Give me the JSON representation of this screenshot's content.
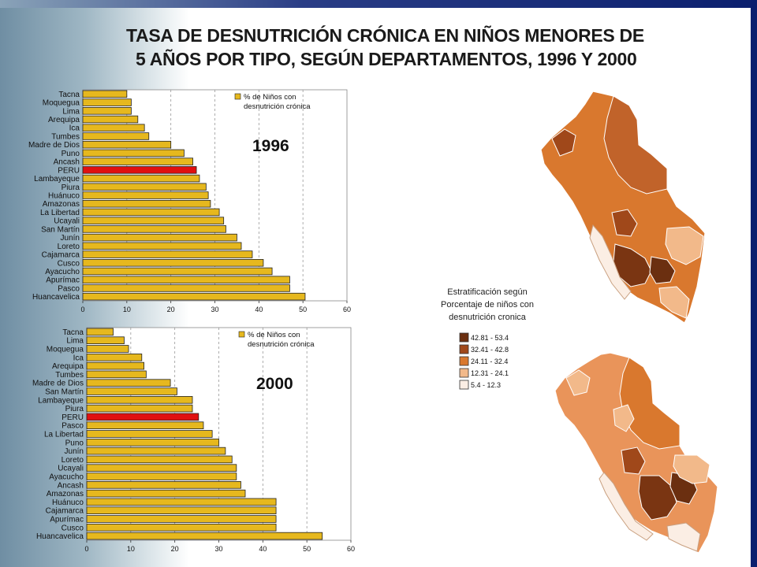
{
  "title": {
    "line1": "TASA DE  DESNUTRICIÓN CRÓNICA EN NIÑOS MENORES DE",
    "line2": "5 AÑOS  POR TIPO, SEGÚN DEPARTAMENTOS, 1996 Y  2000"
  },
  "colors": {
    "bar": "#e6b81e",
    "bar_highlight": "#e01010",
    "bar_stroke": "#222222",
    "map_classes": [
      "#6b2f10",
      "#a0481a",
      "#d9782e",
      "#f2b98a",
      "#fbeee4"
    ]
  },
  "chart_data": [
    {
      "type": "bar",
      "orientation": "horizontal",
      "year_label": "1996",
      "legend": [
        "% de Niños con",
        "desnutrición crónica"
      ],
      "legend_placement": "top-right",
      "xlim": [
        0,
        60
      ],
      "xticks": [
        "0",
        "10",
        "20",
        "30",
        "40",
        "50",
        "60"
      ],
      "grid": true,
      "highlight": "PERU",
      "categories": [
        "Tacna",
        "Moquegua",
        "Lima",
        "Arequipa",
        "Ica",
        "Tumbes",
        "Madre de Dios",
        "Puno",
        "Ancash",
        "PERU",
        "Lambayeque",
        "Piura",
        "Huánuco",
        "Amazonas",
        "La Libertad",
        "Ucayali",
        "San Martín",
        "Junín",
        "Loreto",
        "Cajamarca",
        "Cusco",
        "Ayacucho",
        "Apurímac",
        "Pasco",
        "Huancavelica"
      ],
      "values": [
        10,
        11,
        11,
        12.5,
        14,
        15,
        20,
        23,
        25,
        25.8,
        26.5,
        28,
        28.5,
        29,
        31,
        32,
        32.5,
        35,
        36,
        38.5,
        41,
        43,
        47,
        47,
        50.5
      ]
    },
    {
      "type": "bar",
      "orientation": "horizontal",
      "year_label": "2000",
      "legend": [
        "% de Niños con",
        "desnutrición crónica"
      ],
      "legend_placement": "top-right",
      "xlim": [
        0,
        60
      ],
      "xticks": [
        "0",
        "10",
        "20",
        "30",
        "40",
        "50",
        "60"
      ],
      "grid": true,
      "highlight": "PERU",
      "categories": [
        "Tacna",
        "Lima",
        "Moquegua",
        "Ica",
        "Arequipa",
        "Tumbes",
        "Madre de Dios",
        "San Martín",
        "Lambayeque",
        "Piura",
        "PERU",
        "Pasco",
        "La Libertad",
        "Puno",
        "Junín",
        "Loreto",
        "Ucayali",
        "Ayacucho",
        "Ancash",
        "Amazonas",
        "Huánuco",
        "Cajamarca",
        "Apurímac",
        "Cusco",
        "Huancavelica"
      ],
      "values": [
        6,
        8.5,
        9.5,
        12.5,
        13,
        13.5,
        19,
        20.5,
        24,
        24,
        25.4,
        26.5,
        28.5,
        30,
        31.5,
        33,
        34,
        34,
        35,
        36,
        43,
        43,
        43,
        43,
        53.5
      ]
    }
  ],
  "map_legend": {
    "caption": [
      "Estratificación según",
      "Porcentaje de  niños con",
      "desnutrición cronica"
    ],
    "classes": [
      "42.81 - 53.4",
      "32.41 - 42.8",
      "24.11 - 32.4",
      "12.31 - 24.1",
      "5.4 - 12.3"
    ]
  },
  "maps": [
    "Peru 1996 map",
    "Peru 2000 map"
  ]
}
